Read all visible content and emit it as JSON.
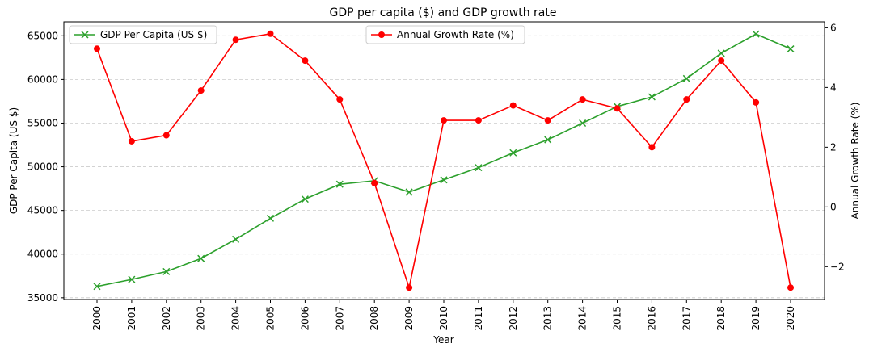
{
  "chart_data": {
    "type": "line",
    "title": "GDP per capita ($) and GDP growth rate",
    "xlabel": "Year",
    "ylabel_left": "GDP Per Capita (US $)",
    "ylabel_right": "Annual Growth Rate (%)",
    "categories": [
      "2000",
      "2001",
      "2002",
      "2003",
      "2004",
      "2005",
      "2006",
      "2007",
      "2008",
      "2009",
      "2010",
      "2011",
      "2012",
      "2013",
      "2014",
      "2015",
      "2016",
      "2017",
      "2018",
      "2019",
      "2020"
    ],
    "ylim_left": [
      34800,
      66600
    ],
    "ylim_right": [
      -3.1,
      6.2
    ],
    "yticks_left": [
      "35000",
      "40000",
      "45000",
      "50000",
      "55000",
      "60000",
      "65000"
    ],
    "yticks_right": [
      "−2",
      "0",
      "2",
      "4",
      "6"
    ],
    "grid": "horizontal dashed",
    "series": [
      {
        "name": "GDP Per Capita (US $)",
        "axis": "left",
        "color": "#2ca02c",
        "marker": "x",
        "legend_position": "upper-left",
        "values": [
          36300,
          37100,
          38000,
          39500,
          41700,
          44100,
          46300,
          48000,
          48400,
          47100,
          48500,
          49900,
          51600,
          53100,
          55000,
          56900,
          58000,
          60100,
          63000,
          65200,
          63500
        ]
      },
      {
        "name": "Annual Growth Rate (%)",
        "axis": "right",
        "color": "#ff0000",
        "marker": "o",
        "legend_position": "upper-center",
        "values": [
          5.3,
          2.2,
          2.4,
          3.9,
          5.6,
          5.8,
          4.9,
          3.6,
          0.8,
          -2.7,
          2.9,
          2.9,
          3.4,
          2.9,
          3.6,
          3.3,
          2.0,
          3.6,
          4.9,
          3.5,
          -2.7
        ]
      }
    ]
  }
}
